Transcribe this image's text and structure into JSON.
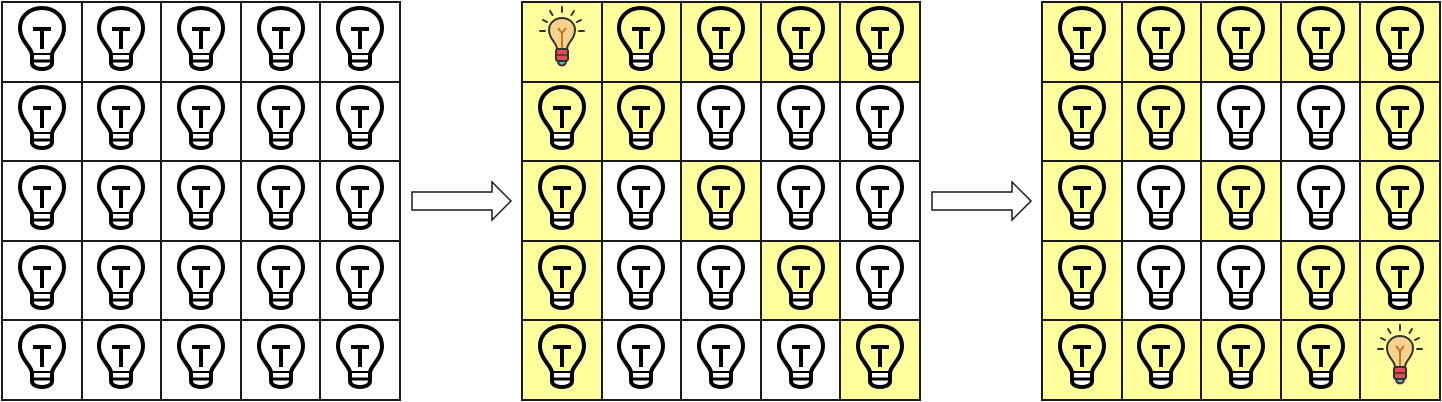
{
  "colors": {
    "on": "#ffff9e",
    "off": "#ffffff",
    "stroke": "#000000"
  },
  "icons": {
    "bulb": "lightbulb-icon",
    "lit": "lit-lightbulb-icon",
    "arrow": "right-arrow-icon"
  },
  "boards": [
    {
      "name": "initial",
      "cells": [
        [
          0,
          0,
          0,
          0,
          0
        ],
        [
          0,
          0,
          0,
          0,
          0
        ],
        [
          0,
          0,
          0,
          0,
          0
        ],
        [
          0,
          0,
          0,
          0,
          0
        ],
        [
          0,
          0,
          0,
          0,
          0
        ]
      ],
      "pressed": null
    },
    {
      "name": "after-first-press",
      "cells": [
        [
          1,
          1,
          1,
          1,
          1
        ],
        [
          1,
          1,
          0,
          0,
          0
        ],
        [
          1,
          0,
          1,
          0,
          0
        ],
        [
          1,
          0,
          0,
          1,
          0
        ],
        [
          1,
          0,
          0,
          0,
          1
        ]
      ],
      "pressed": [
        0,
        0
      ]
    },
    {
      "name": "after-second-press",
      "cells": [
        [
          1,
          1,
          1,
          1,
          1
        ],
        [
          1,
          1,
          0,
          0,
          1
        ],
        [
          1,
          0,
          1,
          0,
          1
        ],
        [
          1,
          0,
          0,
          1,
          1
        ],
        [
          1,
          1,
          1,
          1,
          1
        ]
      ],
      "pressed": [
        4,
        4
      ]
    }
  ]
}
